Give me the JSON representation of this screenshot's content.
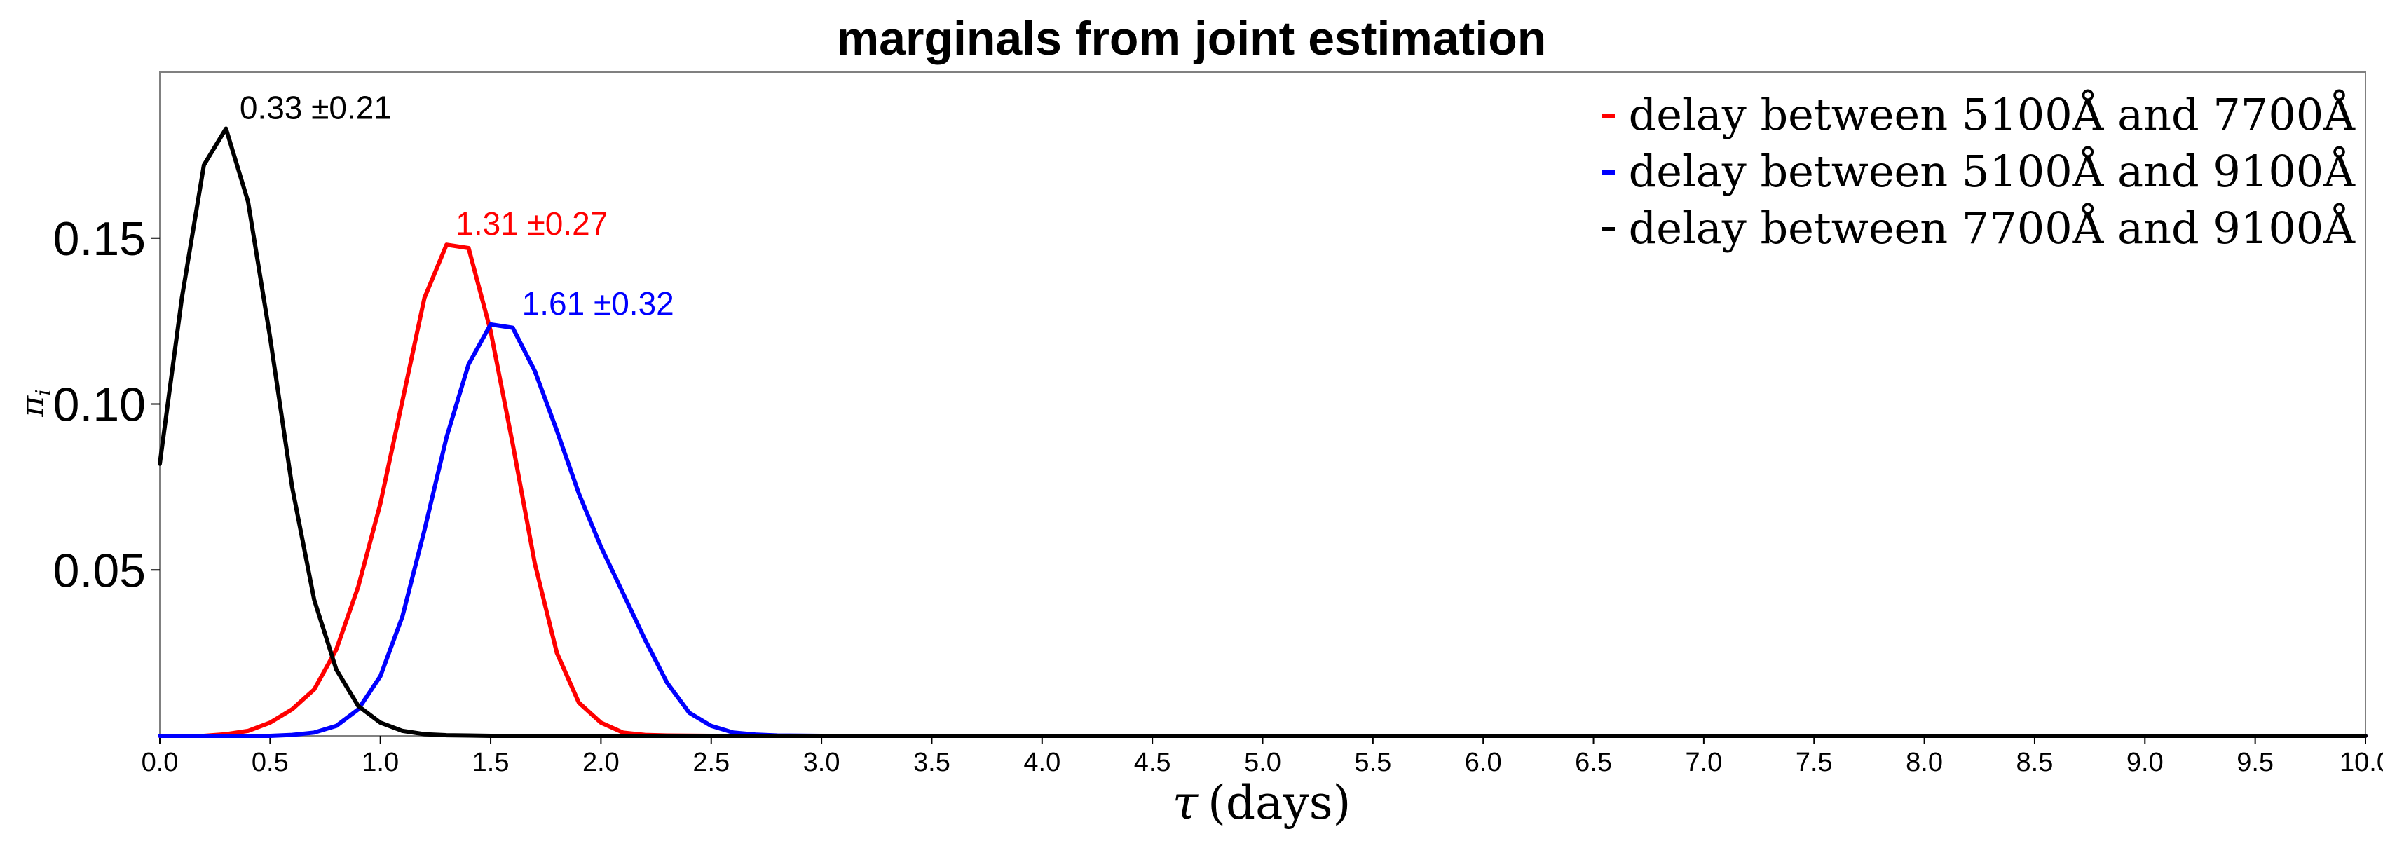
{
  "chart_data": {
    "type": "line",
    "title": "marginals from joint estimation",
    "xlabel_symbol": "τ",
    "xlabel_unit": "(days)",
    "ylabel": "π",
    "ylabel_sub": "i",
    "xlim": [
      0,
      10
    ],
    "ylim": [
      0,
      0.2
    ],
    "xticks": [
      "0.0",
      "0.5",
      "1.0",
      "1.5",
      "2.0",
      "2.5",
      "3.0",
      "3.5",
      "4.0",
      "4.5",
      "5.0",
      "5.5",
      "6.0",
      "6.5",
      "7.0",
      "7.5",
      "8.0",
      "8.5",
      "9.0",
      "9.5",
      "10.0"
    ],
    "xtick_values": [
      0,
      0.5,
      1,
      1.5,
      2,
      2.5,
      3,
      3.5,
      4,
      4.5,
      5,
      5.5,
      6,
      6.5,
      7,
      7.5,
      8,
      8.5,
      9,
      9.5,
      10
    ],
    "yticks": [
      "0.05",
      "0.10",
      "0.15"
    ],
    "ytick_values": [
      0.05,
      0.1,
      0.15
    ],
    "grid": false,
    "legend_position": "top-right",
    "series": [
      {
        "name": "delay between 5100Å and 7700Å",
        "color": "#ff0000",
        "annotation": "1.31 ±0.27",
        "annotation_at": [
          1.31,
          0.148
        ],
        "x": [
          0.0,
          0.1,
          0.2,
          0.3,
          0.4,
          0.5,
          0.6,
          0.7,
          0.8,
          0.9,
          1.0,
          1.1,
          1.2,
          1.3,
          1.4,
          1.5,
          1.6,
          1.7,
          1.8,
          1.9,
          2.0,
          2.1,
          2.2,
          2.3,
          2.5,
          3.0,
          10.0
        ],
        "y": [
          0.0,
          0.0,
          0.0,
          0.0005,
          0.0015,
          0.004,
          0.008,
          0.014,
          0.026,
          0.045,
          0.07,
          0.101,
          0.132,
          0.148,
          0.147,
          0.122,
          0.088,
          0.052,
          0.025,
          0.01,
          0.004,
          0.001,
          0.0003,
          0.0001,
          0.0,
          0.0,
          0.0
        ]
      },
      {
        "name": "delay between 5100Å and 9100Å",
        "color": "#0000ff",
        "annotation": "1.61 ±0.32",
        "annotation_at": [
          1.61,
          0.124
        ],
        "x": [
          0.0,
          0.5,
          0.6,
          0.7,
          0.8,
          0.9,
          1.0,
          1.1,
          1.2,
          1.3,
          1.4,
          1.5,
          1.6,
          1.7,
          1.8,
          1.9,
          2.0,
          2.1,
          2.2,
          2.3,
          2.4,
          2.5,
          2.6,
          2.7,
          2.8,
          3.0,
          10.0
        ],
        "y": [
          0.0,
          0.0,
          0.0003,
          0.001,
          0.003,
          0.008,
          0.018,
          0.036,
          0.062,
          0.09,
          0.112,
          0.124,
          0.123,
          0.11,
          0.092,
          0.073,
          0.057,
          0.043,
          0.029,
          0.016,
          0.007,
          0.003,
          0.001,
          0.0004,
          0.0001,
          0.0,
          0.0
        ]
      },
      {
        "name": "delay between 7700Å and 9100Å",
        "color": "#000000",
        "annotation": "0.33 ±0.21",
        "annotation_at": [
          0.33,
          0.183
        ],
        "x": [
          0.0,
          0.1,
          0.2,
          0.3,
          0.4,
          0.5,
          0.6,
          0.7,
          0.8,
          0.9,
          1.0,
          1.1,
          1.2,
          1.3,
          1.4,
          1.5,
          2.0,
          10.0
        ],
        "y": [
          0.082,
          0.132,
          0.172,
          0.183,
          0.161,
          0.12,
          0.075,
          0.041,
          0.02,
          0.009,
          0.004,
          0.0015,
          0.0005,
          0.0002,
          0.0001,
          0.0,
          0.0,
          0.0
        ]
      }
    ]
  }
}
